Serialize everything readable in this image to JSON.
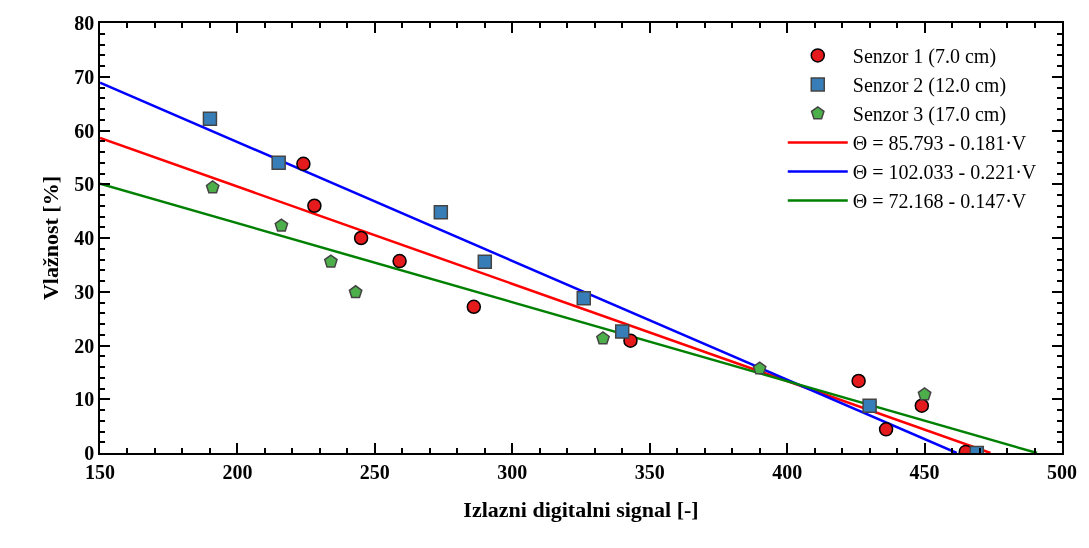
{
  "chart_data": {
    "type": "scatter",
    "xlabel": "Izlazni digitalni signal [-]",
    "ylabel": "Vlažnost [%]",
    "xlim": [
      150,
      500
    ],
    "xticks": [
      150,
      200,
      250,
      300,
      350,
      400,
      450,
      500
    ],
    "ylim": [
      0,
      80
    ],
    "yticks": [
      0,
      10,
      20,
      30,
      40,
      50,
      60,
      70,
      80
    ],
    "legend": "top right",
    "series": [
      {
        "name": "Senzor 1 (7.0 cm)",
        "marker": "circle",
        "color": "#e41a1c",
        "x": [
          224,
          228,
          245,
          259,
          286,
          343,
          426,
          436,
          449,
          465
        ],
        "values": [
          53.8,
          46,
          40,
          35.7,
          27.2,
          20.9,
          13.4,
          4.4,
          8.8,
          0.2
        ]
      },
      {
        "name": "Senzor 2 (12.0 cm)",
        "marker": "square",
        "color": "#377eb8",
        "x": [
          190,
          215,
          274,
          290,
          326,
          340,
          430,
          469
        ],
        "values": [
          62.2,
          54,
          44.8,
          35.6,
          28.8,
          22.6,
          8.8,
          0
        ]
      },
      {
        "name": "Senzor 3 (17.0 cm)",
        "color": "#4daf4a",
        "x": [
          191,
          216,
          234,
          243,
          333,
          390,
          450
        ],
        "values": [
          49.4,
          42.3,
          35.6,
          29.9,
          21.3,
          15.7,
          10.9
        ]
      },
      {
        "name": "Θ = 85.793 - 0.181·V",
        "type": "line",
        "marker": "none",
        "line_style": "solid",
        "color": "#ff0000",
        "x": [
          150,
          474
        ],
        "values": [
          58.6,
          0
        ]
      },
      {
        "name": "Θ = 102.033 - 0.221·V",
        "type": "line",
        "marker": "none",
        "line_style": "solid",
        "color": "#0000ff",
        "x": [
          150,
          461.7
        ],
        "values": [
          68.9,
          0
        ]
      },
      {
        "name": "Θ = 72.168 - 0.147·V",
        "type": "line",
        "marker": "none",
        "line_style": "solid",
        "color": "#008000",
        "x": [
          150,
          490.9
        ],
        "values": [
          50.1,
          0
        ]
      }
    ]
  }
}
